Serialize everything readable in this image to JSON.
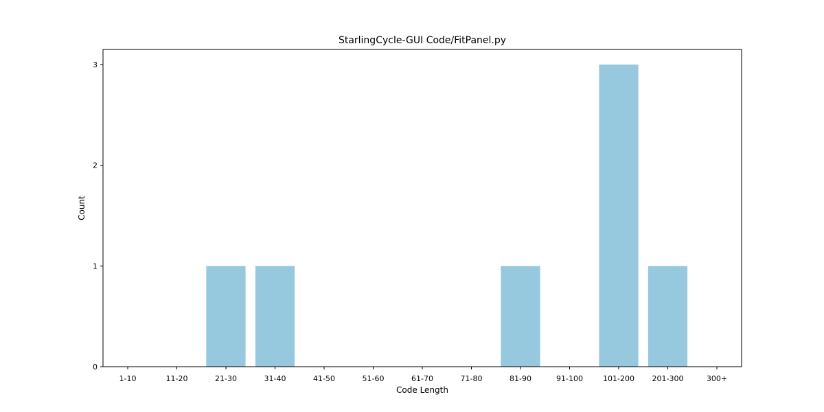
{
  "chart_data": {
    "type": "bar",
    "title": "StarlingCycle-GUI Code/FitPanel.py",
    "xlabel": "Code Length",
    "ylabel": "Count",
    "categories": [
      "1-10",
      "11-20",
      "21-30",
      "31-40",
      "41-50",
      "51-60",
      "61-70",
      "71-80",
      "81-90",
      "91-100",
      "101-200",
      "201-300",
      "300+"
    ],
    "values": [
      0,
      0,
      1,
      1,
      0,
      0,
      0,
      0,
      1,
      0,
      3,
      1,
      0
    ],
    "yticks": [
      "0",
      "1",
      "2",
      "3"
    ],
    "ylim": [
      0,
      3.15
    ],
    "grid": false,
    "bar_color": "#96c9de"
  }
}
